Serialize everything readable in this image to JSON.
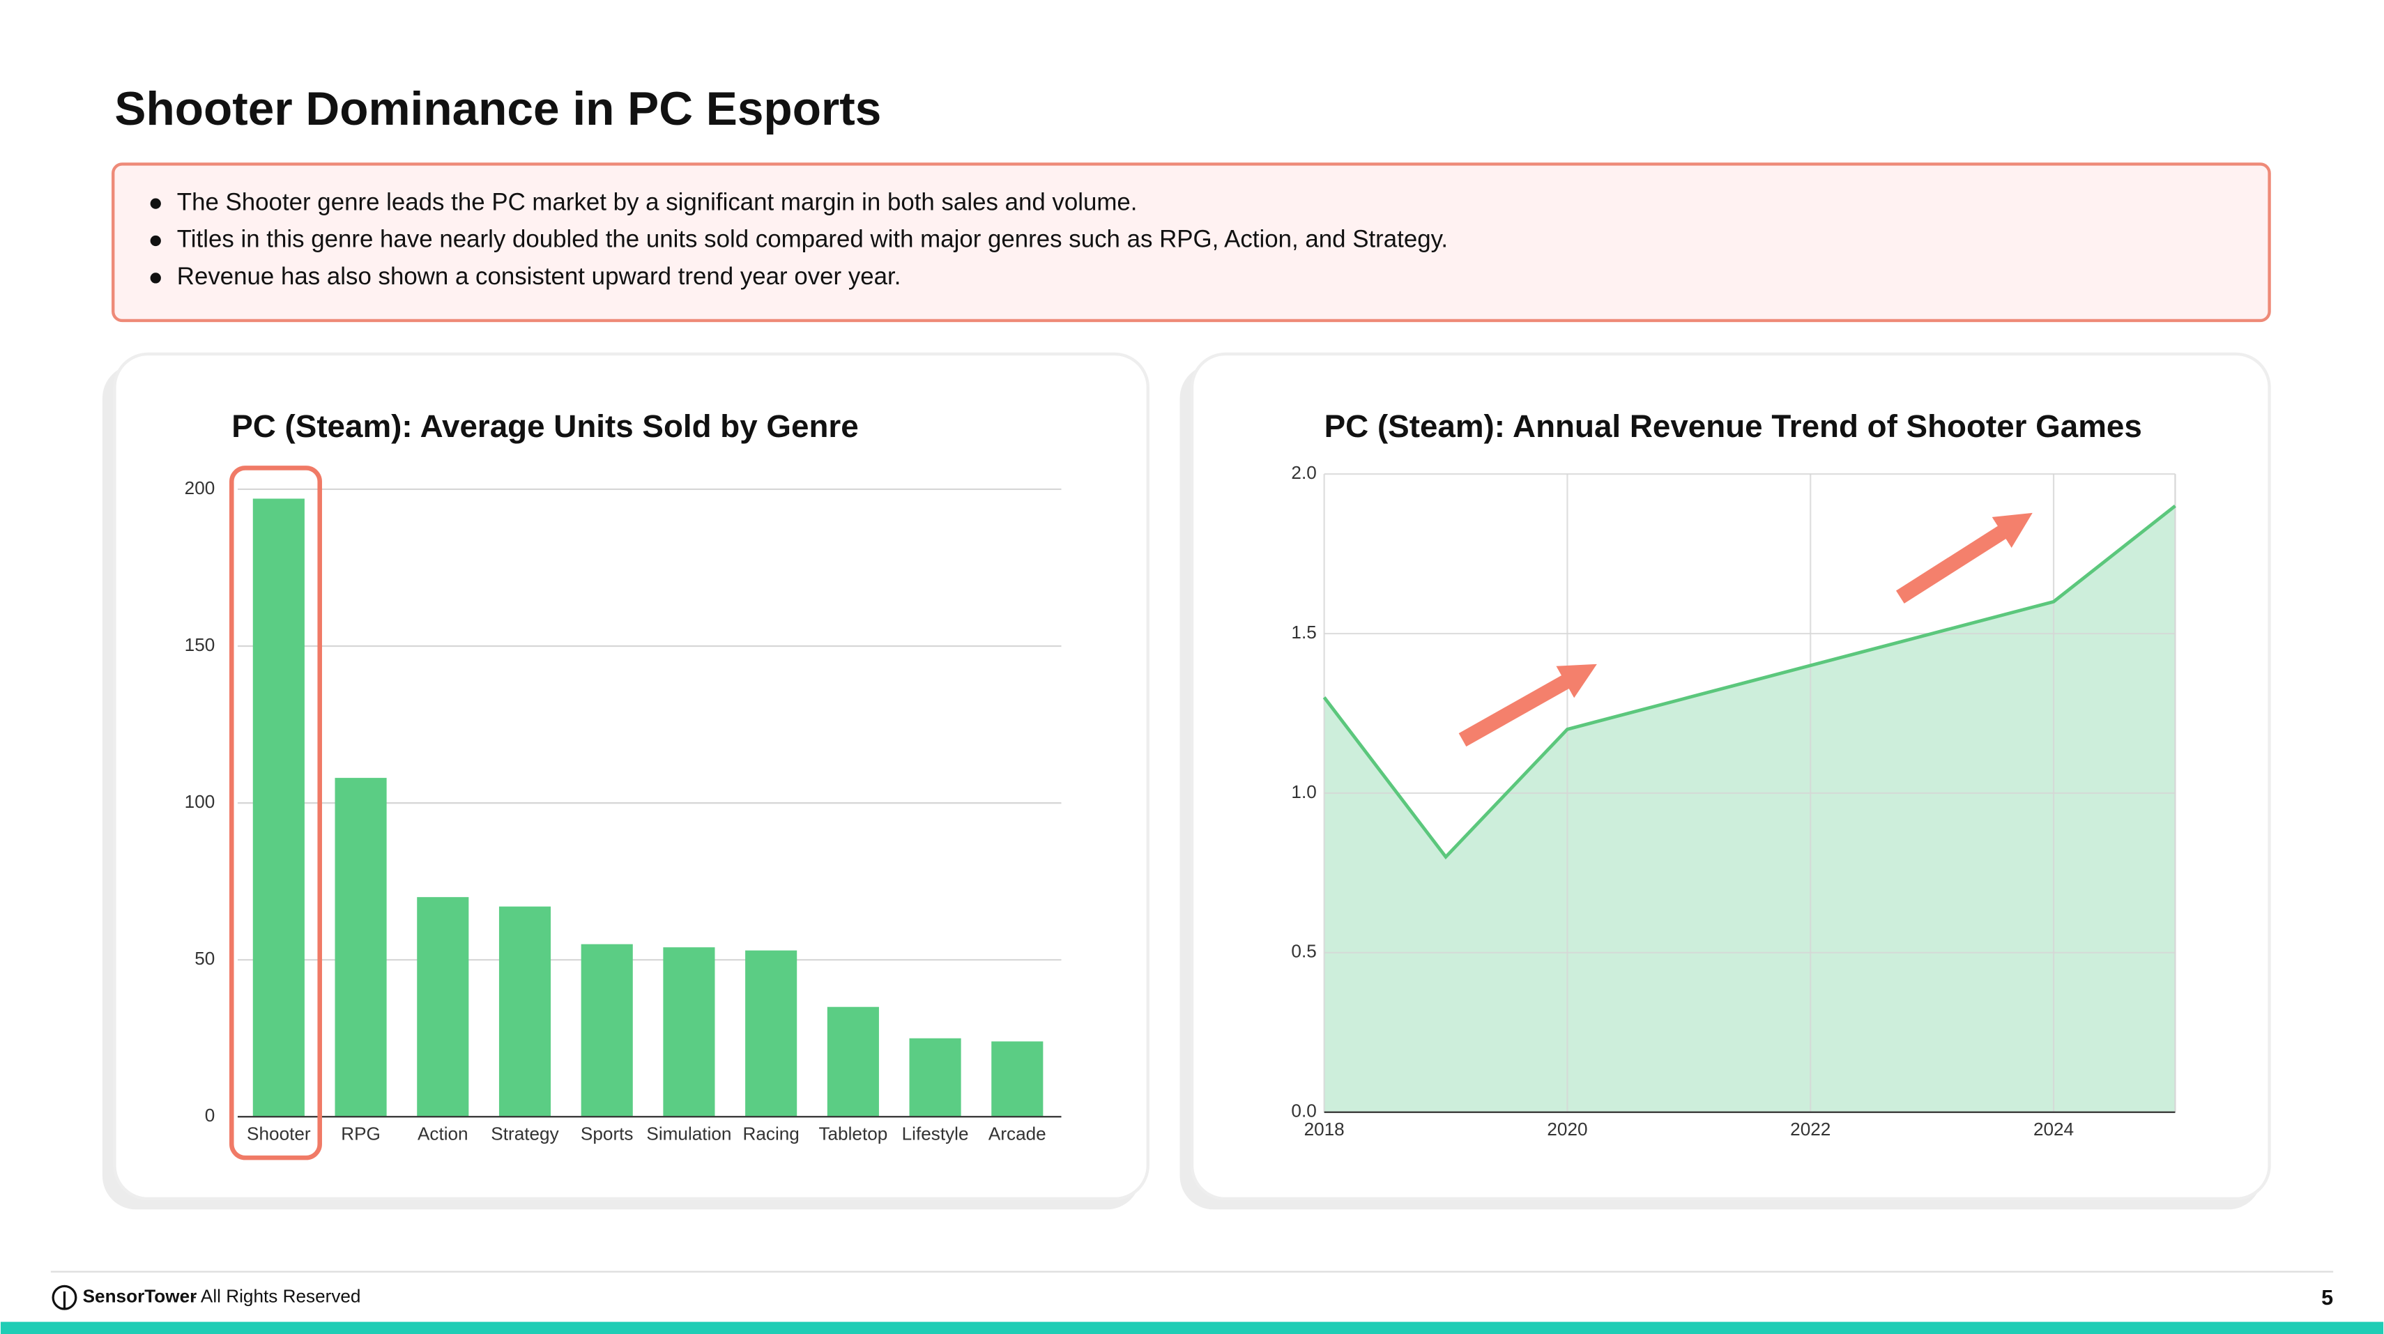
{
  "header": {
    "title": "Shooter Dominance in PC Esports"
  },
  "summary": {
    "bullets": [
      "The Shooter genre leads the PC market by a significant margin in both sales and volume.",
      "Titles in this genre have nearly doubled the units sold compared with major genres such as RPG, Action, and Strategy.",
      "Revenue has also shown a consistent upward trend year over year."
    ]
  },
  "chart_data": [
    {
      "type": "bar",
      "title": "PC (Steam): Average Units Sold by Genre",
      "categories": [
        "Shooter",
        "RPG",
        "Action",
        "Strategy",
        "Sports",
        "Simulation",
        "Racing",
        "Tabletop",
        "Lifestyle",
        "Arcade"
      ],
      "values": [
        197,
        108,
        70,
        67,
        55,
        54,
        53,
        35,
        25,
        24
      ],
      "color": "#5bcd84",
      "ylim": [
        0,
        200
      ],
      "yticks": [
        0,
        50,
        100,
        150,
        200
      ],
      "grid": true
    },
    {
      "type": "area",
      "title": "PC (Steam): Annual Revenue Trend of Shooter Games",
      "x": [
        2018,
        2019,
        2020,
        2021,
        2022,
        2023,
        2024,
        2025
      ],
      "values": [
        1.3,
        0.8,
        1.2,
        1.3,
        1.4,
        1.5,
        1.6,
        1.9
      ],
      "color": "#5bc77c",
      "fill_color": "#cdeedb",
      "xlim": [
        2018,
        2025
      ],
      "xticks": [
        2018,
        2020,
        2022,
        2024
      ],
      "ylim": [
        0,
        2
      ],
      "yticks": [
        {
          "value": 0,
          "label": "0.0"
        },
        {
          "value": 0.5,
          "label": "0.5"
        },
        {
          "value": 1,
          "label": "1.0"
        },
        {
          "value": 1.5,
          "label": "1.5"
        },
        {
          "value": 2,
          "label": "2.0"
        }
      ],
      "grid": true
    }
  ],
  "footer": {
    "brand": "SensorTower",
    "text": "- All Rights Reserved",
    "page": 5
  }
}
